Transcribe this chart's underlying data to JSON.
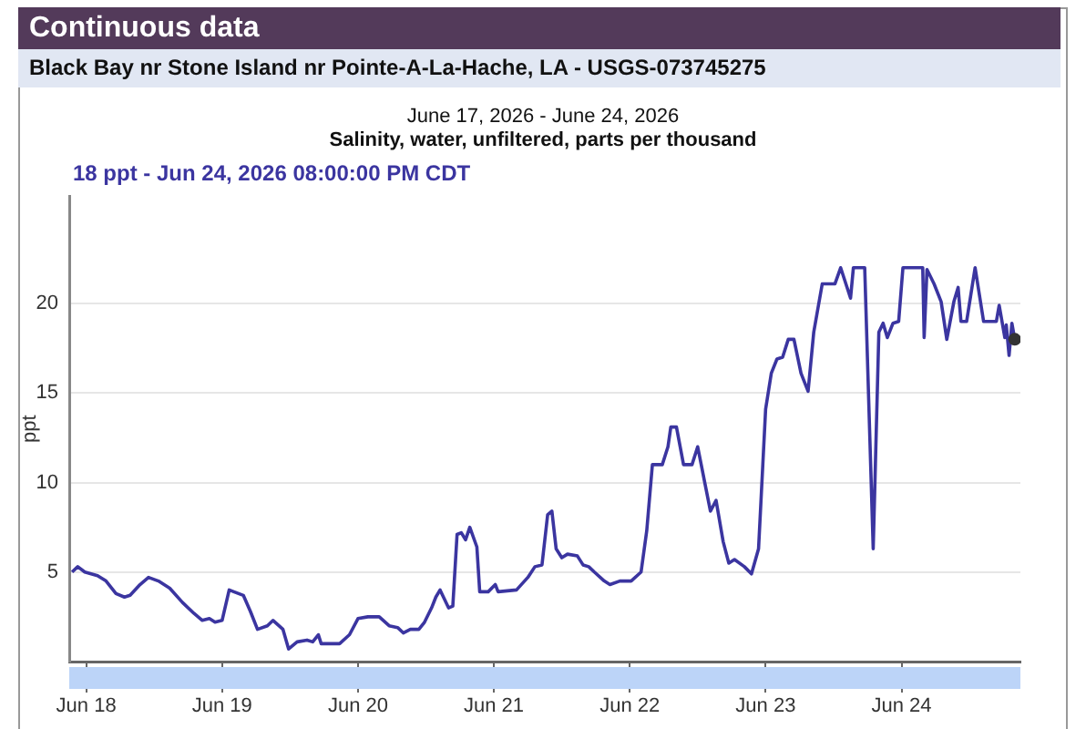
{
  "chart_data": {
    "type": "line",
    "title": "Continuous data",
    "subtitle": "Black Bay nr Stone Island nr Pointe-A-La-Hache, LA - USGS-073745275",
    "ylabel": "ppt",
    "annotations": [
      "June 17, 2026 - June 24, 2026",
      "Salinity, water, unfiltered, parts per thousand",
      "18 ppt - Jun 24, 2026 08:00:00 PM CDT"
    ],
    "xlim": [
      "2026-06-17T21:00",
      "2026-06-24T21:00"
    ],
    "xticks": [
      {
        "value": "2026-06-18",
        "label": "Jun 18"
      },
      {
        "value": "2026-06-19",
        "label": "Jun 19"
      },
      {
        "value": "2026-06-20",
        "label": "Jun 20"
      },
      {
        "value": "2026-06-21",
        "label": "Jun 21"
      },
      {
        "value": "2026-06-22",
        "label": "Jun 22"
      },
      {
        "value": "2026-06-23",
        "label": "Jun 23"
      },
      {
        "value": "2026-06-24",
        "label": "Jun 24"
      }
    ],
    "ylim": [
      0,
      26
    ],
    "yticks": [
      5,
      10,
      15,
      20
    ],
    "grid": "y",
    "legend": false,
    "marker": "none",
    "line_style": "solid",
    "series": [
      {
        "color": "#3b35a0",
        "x": [
          "2026-06-17T21:30",
          "2026-06-17T22:30",
          "2026-06-17T23:45",
          "2026-06-18T02:00",
          "2026-06-18T03:30",
          "2026-06-18T05:15",
          "2026-06-18T06:45",
          "2026-06-18T07:45",
          "2026-06-18T09:30",
          "2026-06-18T11:00",
          "2026-06-18T12:45",
          "2026-06-18T14:45",
          "2026-06-18T17:00",
          "2026-06-18T19:00",
          "2026-06-18T20:30",
          "2026-06-18T21:45",
          "2026-06-18T22:45",
          "2026-06-19T00:00",
          "2026-06-19T01:15",
          "2026-06-19T03:45",
          "2026-06-19T05:00",
          "2026-06-19T06:15",
          "2026-06-19T08:00",
          "2026-06-19T09:00",
          "2026-06-19T10:45",
          "2026-06-19T11:45",
          "2026-06-19T13:15",
          "2026-06-19T15:00",
          "2026-06-19T16:00",
          "2026-06-19T17:00",
          "2026-06-19T17:30",
          "2026-06-19T20:45",
          "2026-06-19T22:30",
          "2026-06-20T00:00",
          "2026-06-20T01:45",
          "2026-06-20T03:45",
          "2026-06-20T05:30",
          "2026-06-20T07:00",
          "2026-06-20T08:00",
          "2026-06-20T09:15",
          "2026-06-20T10:45",
          "2026-06-20T11:45",
          "2026-06-20T13:00",
          "2026-06-20T13:45",
          "2026-06-20T14:30",
          "2026-06-20T16:00",
          "2026-06-20T16:45",
          "2026-06-20T17:30",
          "2026-06-20T18:15",
          "2026-06-20T19:00",
          "2026-06-20T19:45",
          "2026-06-20T21:00",
          "2026-06-20T21:30",
          "2026-06-20T23:00",
          "2026-06-21T00:15",
          "2026-06-21T00:45",
          "2026-06-21T04:00",
          "2026-06-21T06:00",
          "2026-06-21T07:15",
          "2026-06-21T08:30",
          "2026-06-21T09:30",
          "2026-06-21T10:15",
          "2026-06-21T11:00",
          "2026-06-21T12:00",
          "2026-06-21T13:00",
          "2026-06-21T14:45",
          "2026-06-21T15:45",
          "2026-06-21T16:45",
          "2026-06-21T17:45",
          "2026-06-21T19:30",
          "2026-06-21T20:30",
          "2026-06-21T22:15",
          "2026-06-22T00:15",
          "2026-06-22T02:00",
          "2026-06-22T03:00",
          "2026-06-22T04:00",
          "2026-06-22T05:45",
          "2026-06-22T06:45",
          "2026-06-22T07:15",
          "2026-06-22T08:15",
          "2026-06-22T09:30",
          "2026-06-22T11:00",
          "2026-06-22T12:00",
          "2026-06-22T13:15",
          "2026-06-22T14:15",
          "2026-06-22T15:15",
          "2026-06-22T16:30",
          "2026-06-22T17:30",
          "2026-06-22T18:30",
          "2026-06-22T20:15",
          "2026-06-22T21:30",
          "2026-06-22T22:45",
          "2026-06-23T00:00",
          "2026-06-23T01:00",
          "2026-06-23T02:00",
          "2026-06-23T03:00",
          "2026-06-23T04:00",
          "2026-06-23T05:00",
          "2026-06-23T06:15",
          "2026-06-23T07:30",
          "2026-06-23T08:30",
          "2026-06-23T10:00",
          "2026-06-23T12:15",
          "2026-06-23T13:15",
          "2026-06-23T15:00",
          "2026-06-23T15:30",
          "2026-06-23T17:30",
          "2026-06-23T19:00",
          "2026-06-23T20:00",
          "2026-06-23T20:45",
          "2026-06-23T21:30",
          "2026-06-23T22:30",
          "2026-06-23T23:30",
          "2026-06-24T00:15",
          "2026-06-24T03:45",
          "2026-06-24T04:00",
          "2026-06-24T04:30",
          "2026-06-24T05:45",
          "2026-06-24T07:00",
          "2026-06-24T08:00",
          "2026-06-24T09:15",
          "2026-06-24T10:00",
          "2026-06-24T10:30",
          "2026-06-24T11:30",
          "2026-06-24T13:00",
          "2026-06-24T14:30",
          "2026-06-24T16:45",
          "2026-06-24T17:15",
          "2026-06-24T18:15",
          "2026-06-24T18:30",
          "2026-06-24T19:00",
          "2026-06-24T19:30",
          "2026-06-24T20:00"
        ],
        "values": [
          5.0,
          5.3,
          5.0,
          4.8,
          4.5,
          3.8,
          3.6,
          3.7,
          4.3,
          4.7,
          4.5,
          4.1,
          3.3,
          2.7,
          2.3,
          2.4,
          2.2,
          2.3,
          4.0,
          3.7,
          2.8,
          1.8,
          2.0,
          2.3,
          1.8,
          0.7,
          1.1,
          1.2,
          1.1,
          1.5,
          1.0,
          1.0,
          1.5,
          2.4,
          2.5,
          2.5,
          2.0,
          1.9,
          1.6,
          1.8,
          1.8,
          2.2,
          3.0,
          3.6,
          4.0,
          3.0,
          3.1,
          7.1,
          7.2,
          6.8,
          7.5,
          6.4,
          3.9,
          3.9,
          4.3,
          3.9,
          4.0,
          4.7,
          5.3,
          5.4,
          8.2,
          8.4,
          6.3,
          5.8,
          6.0,
          5.9,
          5.4,
          5.3,
          5.0,
          4.5,
          4.3,
          4.5,
          4.5,
          5.0,
          7.3,
          11.0,
          11.0,
          12.0,
          13.1,
          13.1,
          11.0,
          11.0,
          12.0,
          10.0,
          8.4,
          9.0,
          6.7,
          5.5,
          5.7,
          5.3,
          4.9,
          6.3,
          14.1,
          16.1,
          16.9,
          17.0,
          18.0,
          18.0,
          16.1,
          15.1,
          18.4,
          21.1,
          21.1,
          22.0,
          20.3,
          22.0,
          22.0,
          6.3,
          18.4,
          18.9,
          18.1,
          18.9,
          19.0,
          22.0,
          22.0,
          18.1,
          21.9,
          21.1,
          20.1,
          18.0,
          20.1,
          20.9,
          19.0,
          19.0,
          22.0,
          19.0,
          19.0,
          19.9,
          18.1,
          18.8,
          17.1,
          18.9,
          18.0
        ]
      }
    ]
  }
}
